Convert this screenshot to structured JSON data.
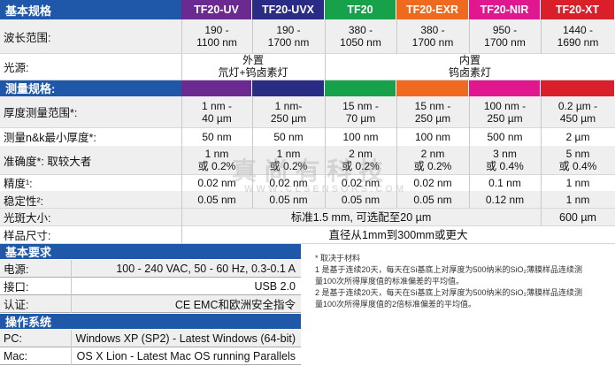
{
  "colors": {
    "header_blue": "#1f58a8",
    "uv": "#6a2a8f",
    "uvx": "#2a2b85",
    "tf20": "#16a14a",
    "exr": "#ef6a1f",
    "nir": "#e0178e",
    "xt": "#d81f2a"
  },
  "sections": {
    "basic": "基本规格",
    "measure": "测量规格:",
    "req": "基本要求",
    "os": "操作系统"
  },
  "columns": [
    "TF20-UV",
    "TF20-UVX",
    "TF20",
    "TF20-EXR",
    "TF20-NIR",
    "TF20-XT"
  ],
  "basic_rows": {
    "wavelength": {
      "label": "波长范围:",
      "values": [
        [
          "190 -",
          "1100 nm"
        ],
        [
          "190 -",
          "1700 nm"
        ],
        [
          "380 -",
          "1050 nm"
        ],
        [
          "380 -",
          "1700 nm"
        ],
        [
          "950 -",
          "1700 nm"
        ],
        [
          "1440 -",
          "1690 nm"
        ]
      ]
    },
    "source": {
      "label": "光源:",
      "external": [
        "外置",
        "氘灯+钨卤素灯"
      ],
      "internal": [
        "内置",
        "钨卤素灯"
      ]
    }
  },
  "measure_rows": [
    {
      "label": "厚度测量范围*:",
      "values": [
        [
          "1 nm -",
          "40 µm"
        ],
        [
          "1 nm-",
          "250 µm"
        ],
        [
          "15 nm -",
          "70 µm"
        ],
        [
          "15 nm -",
          "250 µm"
        ],
        [
          "100 nm -",
          "250 µm"
        ],
        [
          "0.2 µm -",
          "450 µm"
        ]
      ]
    },
    {
      "label": "测量n&k最小厚度*:",
      "values": [
        [
          "50 nm"
        ],
        [
          "50 nm"
        ],
        [
          "100 nm"
        ],
        [
          "100 nm"
        ],
        [
          "500 nm"
        ],
        [
          "2 µm"
        ]
      ]
    },
    {
      "label": "准确度*: 取较大者",
      "values": [
        [
          "1 nm",
          "或 0.2%"
        ],
        [
          "1 nm",
          "或 0.2%"
        ],
        [
          "2 nm",
          "或 0.2%"
        ],
        [
          "2 nm",
          "或 0.2%"
        ],
        [
          "3 nm",
          "或 0.4%"
        ],
        [
          "5 nm",
          "或 0.4%"
        ]
      ]
    },
    {
      "label": "精度¹:",
      "values": [
        [
          "0.02 nm"
        ],
        [
          "0.02 nm"
        ],
        [
          "0.02 nm"
        ],
        [
          "0.02 nm"
        ],
        [
          "0.1 nm"
        ],
        [
          "1 nm"
        ]
      ]
    },
    {
      "label": "稳定性²:",
      "values": [
        [
          "0.05 nm"
        ],
        [
          "0.05 nm"
        ],
        [
          "0.05 nm"
        ],
        [
          "0.05 nm"
        ],
        [
          "0.12 nm"
        ],
        [
          "1 nm"
        ]
      ]
    }
  ],
  "spot": {
    "label": "光斑大小:",
    "common": "标准1.5 mm, 可选配至20 µm",
    "xt": "600 µm"
  },
  "sample": {
    "label": "样品尺寸:",
    "value": "直径从1mm到300mm或更大"
  },
  "requirements": [
    {
      "label": "电源:",
      "value": "100 - 240 VAC, 50 - 60 Hz, 0.3-0.1 A"
    },
    {
      "label": "接口:",
      "value": "USB 2.0"
    },
    {
      "label": "认证:",
      "value": "CE EMC和欧洲安全指令"
    }
  ],
  "os_rows": [
    {
      "label": "PC:",
      "value": "Windows XP (SP2) - Latest Windows (64-bit)"
    },
    {
      "label": "Mac:",
      "value": "OS X Lion - Latest Mac OS running Parallels"
    }
  ],
  "notes": [
    "* 取决于材料",
    "1 是基于连续20天，每天在Si基底上对厚度为500纳米的SiO₂薄膜样品连续测",
    "量100次所得厚度值的标准偏差的平均值。",
    "2 是基于连续20天，每天在Si基底上对厚度为500纳米的SiO₂薄膜样品连续测",
    "量100次所得厚度值的2倍标准偏差的平均值。"
  ],
  "watermark": {
    "cn": "真 尚 有 科 技",
    "en": "W W W . C L S E N S O R S . C O M"
  }
}
